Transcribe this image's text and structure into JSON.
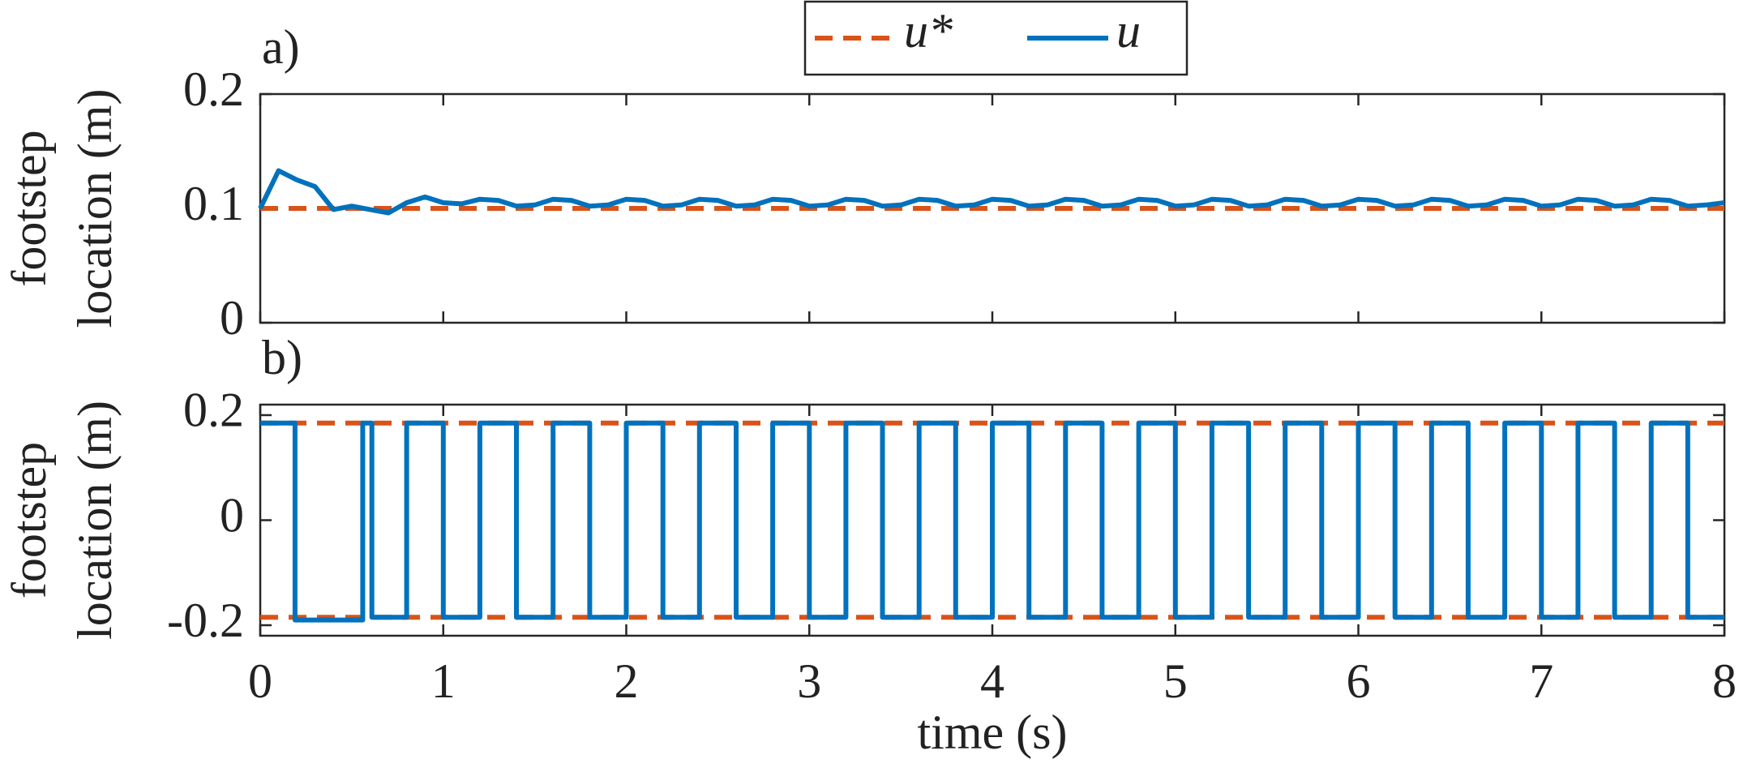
{
  "chart_data": [
    {
      "type": "line",
      "title": "a)",
      "ylabel": [
        "footstep",
        "location (m)"
      ],
      "xlim": [
        0,
        8
      ],
      "xticks": [
        0,
        1,
        2,
        3,
        4,
        5,
        6,
        7,
        8
      ],
      "xtick_labels": false,
      "ylim": [
        0,
        0.2
      ],
      "yticks": [
        0,
        0.1,
        0.2
      ],
      "series": [
        {
          "name": "u*",
          "color": "#D95319",
          "dash": true,
          "x": [
            0,
            8
          ],
          "values": [
            0.1,
            0.1
          ]
        },
        {
          "name": "u",
          "color": "#0072BD",
          "dash": false,
          "x": [
            0,
            0.1,
            0.2,
            0.3,
            0.4,
            0.5,
            0.6,
            0.7,
            0.8,
            0.9,
            1,
            1.1,
            1.2,
            1.3,
            1.4,
            1.5,
            1.6,
            1.7,
            1.8,
            1.9,
            2,
            2.1,
            2.2,
            2.3,
            2.4,
            2.5,
            2.6,
            2.7,
            2.8,
            2.9,
            3,
            3.1,
            3.2,
            3.3,
            3.4,
            3.5,
            3.6,
            3.7,
            3.8,
            3.9,
            4,
            4.1,
            4.2,
            4.3,
            4.4,
            4.5,
            4.6,
            4.7,
            4.8,
            4.9,
            5,
            5.1,
            5.2,
            5.3,
            5.4,
            5.5,
            5.6,
            5.7,
            5.8,
            5.9,
            6,
            6.1,
            6.2,
            6.3,
            6.4,
            6.5,
            6.6,
            6.7,
            6.8,
            6.9,
            7,
            7.1,
            7.2,
            7.3,
            7.4,
            7.5,
            7.6,
            7.7,
            7.8,
            7.9,
            8
          ],
          "values": [
            0.1,
            0.133,
            0.125,
            0.119,
            0.099,
            0.102,
            0.099,
            0.096,
            0.105,
            0.11,
            0.105,
            0.104,
            0.108,
            0.107,
            0.102,
            0.103,
            0.108,
            0.107,
            0.102,
            0.103,
            0.108,
            0.107,
            0.102,
            0.103,
            0.108,
            0.107,
            0.102,
            0.103,
            0.108,
            0.107,
            0.102,
            0.103,
            0.108,
            0.107,
            0.102,
            0.103,
            0.108,
            0.107,
            0.102,
            0.103,
            0.108,
            0.107,
            0.102,
            0.103,
            0.108,
            0.107,
            0.102,
            0.103,
            0.108,
            0.107,
            0.102,
            0.103,
            0.108,
            0.107,
            0.102,
            0.103,
            0.108,
            0.107,
            0.102,
            0.103,
            0.108,
            0.107,
            0.102,
            0.103,
            0.108,
            0.107,
            0.102,
            0.103,
            0.108,
            0.107,
            0.102,
            0.103,
            0.108,
            0.107,
            0.102,
            0.103,
            0.108,
            0.107,
            0.102,
            0.103,
            0.105
          ]
        }
      ]
    },
    {
      "type": "line",
      "title": "b)",
      "ylabel": [
        "footstep",
        "location (m)"
      ],
      "xlabel": "time (s)",
      "xlim": [
        0,
        8
      ],
      "xticks": [
        0,
        1,
        2,
        3,
        4,
        5,
        6,
        7,
        8
      ],
      "ylim": [
        -0.22,
        0.22
      ],
      "yticks": [
        -0.2,
        0,
        0.2
      ],
      "series": [
        {
          "color": "#D95319",
          "dash": true,
          "x": [
            0,
            8
          ],
          "values": [
            0.185,
            0.185
          ]
        },
        {
          "color": "#D95319",
          "dash": true,
          "x": [
            0,
            8
          ],
          "values": [
            -0.185,
            -0.185
          ]
        },
        {
          "color": "#0072BD",
          "dash": false,
          "x": [
            0,
            0.19,
            0.19,
            0.56,
            0.56,
            0.61,
            0.61,
            0.8,
            0.8,
            1,
            1,
            1.2,
            1.2,
            1.4,
            1.4,
            1.6,
            1.6,
            1.8,
            1.8,
            2,
            2,
            2.2,
            2.2,
            2.4,
            2.4,
            2.6,
            2.6,
            2.8,
            2.8,
            3,
            3,
            3.2,
            3.2,
            3.4,
            3.4,
            3.6,
            3.6,
            3.8,
            3.8,
            4,
            4,
            4.2,
            4.2,
            4.4,
            4.4,
            4.6,
            4.6,
            4.8,
            4.8,
            5,
            5,
            5.2,
            5.2,
            5.4,
            5.4,
            5.6,
            5.6,
            5.8,
            5.8,
            6,
            6,
            6.2,
            6.2,
            6.4,
            6.4,
            6.6,
            6.6,
            6.8,
            6.8,
            7,
            7,
            7.2,
            7.2,
            7.4,
            7.4,
            7.6,
            7.6,
            7.8,
            7.8,
            8
          ],
          "values": [
            0.185,
            0.185,
            -0.19,
            -0.19,
            0.185,
            0.185,
            -0.185,
            -0.185,
            0.185,
            0.185,
            -0.185,
            -0.185,
            0.185,
            0.185,
            -0.185,
            -0.185,
            0.185,
            0.185,
            -0.185,
            -0.185,
            0.185,
            0.185,
            -0.185,
            -0.185,
            0.185,
            0.185,
            -0.185,
            -0.185,
            0.185,
            0.185,
            -0.185,
            -0.185,
            0.185,
            0.185,
            -0.185,
            -0.185,
            0.185,
            0.185,
            -0.185,
            -0.185,
            0.185,
            0.185,
            -0.185,
            -0.185,
            0.185,
            0.185,
            -0.185,
            -0.185,
            0.185,
            0.185,
            -0.185,
            -0.185,
            0.185,
            0.185,
            -0.185,
            -0.185,
            0.185,
            0.185,
            -0.185,
            -0.185,
            0.185,
            0.185,
            -0.185,
            -0.185,
            0.185,
            0.185,
            -0.185,
            -0.185,
            0.185,
            0.185,
            -0.185,
            -0.185,
            0.185,
            0.185,
            -0.185,
            -0.185,
            0.185,
            0.185,
            -0.185,
            -0.185
          ]
        }
      ]
    }
  ]
}
